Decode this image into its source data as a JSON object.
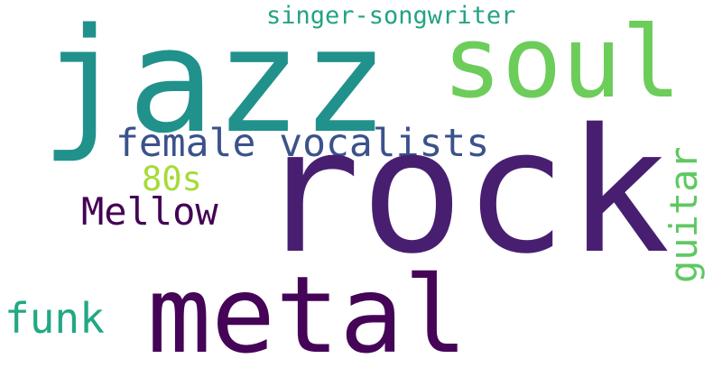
{
  "words": [
    {
      "text": "jazz",
      "color": "#21918c"
    },
    {
      "text": "soul",
      "color": "#6ccd5a"
    },
    {
      "text": "singer-songwriter",
      "color": "#23a383"
    },
    {
      "text": "female vocalists",
      "color": "#3b528b"
    },
    {
      "text": "rock",
      "color": "#481f70"
    },
    {
      "text": "80s",
      "color": "#a5db36"
    },
    {
      "text": "Mellow",
      "color": "#440154"
    },
    {
      "text": "guitar",
      "color": "#5ec962"
    },
    {
      "text": "funk",
      "color": "#22a884"
    },
    {
      "text": "metal",
      "color": "#450457"
    }
  ]
}
